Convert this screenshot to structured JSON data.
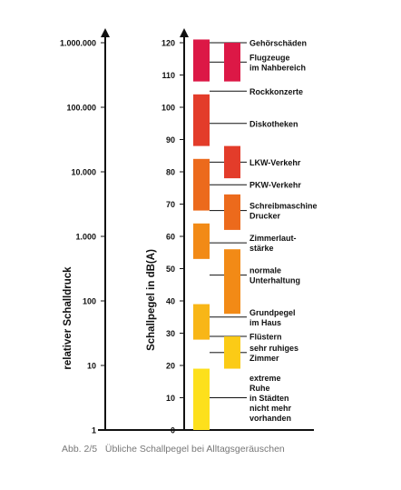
{
  "chart_data": {
    "type": "diagram",
    "left_axis": {
      "title": "relativer Schalldruck",
      "ticks": [
        {
          "label": "1.000.000",
          "db": 120
        },
        {
          "label": "100.000",
          "db": 100
        },
        {
          "label": "10.000",
          "db": 80
        },
        {
          "label": "1.000",
          "db": 60
        },
        {
          "label": "100",
          "db": 40
        },
        {
          "label": "10",
          "db": 20
        },
        {
          "label": "1",
          "db": 0
        }
      ]
    },
    "right_axis": {
      "title": "Schallpegel in dB(A)",
      "ticks": [
        120,
        110,
        100,
        90,
        80,
        70,
        60,
        50,
        40,
        30,
        20,
        10,
        0
      ],
      "ylim": [
        0,
        120
      ]
    },
    "main_column": [
      {
        "from": 108,
        "to": 121,
        "color": "#dc1846"
      },
      {
        "from": 88,
        "to": 104,
        "color": "#e33c2a"
      },
      {
        "from": 68,
        "to": 84,
        "color": "#ec6a1c"
      },
      {
        "from": 53,
        "to": 64,
        "color": "#f28a16"
      },
      {
        "from": 28,
        "to": 39,
        "color": "#f8b617"
      },
      {
        "from": 0,
        "to": 19,
        "color": "#fde01c"
      }
    ],
    "sources": [
      {
        "lines": [
          "Gehörschäden"
        ],
        "db": 120,
        "bar": null
      },
      {
        "lines": [
          "Flugzeuge",
          "im Nahbereich"
        ],
        "db": 114,
        "bar": {
          "from": 108,
          "to": 120,
          "color": "#dc1846"
        }
      },
      {
        "lines": [
          "Rockkonzerte"
        ],
        "db": 105,
        "bar": null
      },
      {
        "lines": [
          "Diskotheken"
        ],
        "db": 95,
        "bar": null
      },
      {
        "lines": [
          "LKW-Verkehr"
        ],
        "db": 83,
        "bar": {
          "from": 78,
          "to": 88,
          "color": "#e33c2a"
        }
      },
      {
        "lines": [
          "PKW-Verkehr"
        ],
        "db": 76,
        "bar": null
      },
      {
        "lines": [
          "Schreibmaschine",
          "Drucker"
        ],
        "db": 68,
        "bar": {
          "from": 62,
          "to": 73,
          "color": "#ec6a1c"
        }
      },
      {
        "lines": [
          "Zimmerlaut-",
          "stärke"
        ],
        "db": 58,
        "bar": null
      },
      {
        "lines": [
          "normale",
          "Unterhaltung"
        ],
        "db": 48,
        "bar": {
          "from": 36,
          "to": 56,
          "color": "#f28a16"
        }
      },
      {
        "lines": [
          "Grundpegel",
          "im Haus"
        ],
        "db": 35,
        "bar": null
      },
      {
        "lines": [
          "Flüstern"
        ],
        "db": 29,
        "bar": null
      },
      {
        "lines": [
          "sehr ruhiges",
          "Zimmer"
        ],
        "db": 24,
        "bar": {
          "from": 19,
          "to": 29,
          "color": "#fbcb16"
        }
      },
      {
        "lines": [
          "extreme",
          "Ruhe",
          "in Städten",
          "nicht mehr",
          "vorhanden"
        ],
        "db": 10,
        "bar": null
      }
    ]
  },
  "caption": {
    "figure_number": "Abb. 2/5",
    "text": "Übliche Schallpegel bei Alltagsgeräuschen"
  }
}
